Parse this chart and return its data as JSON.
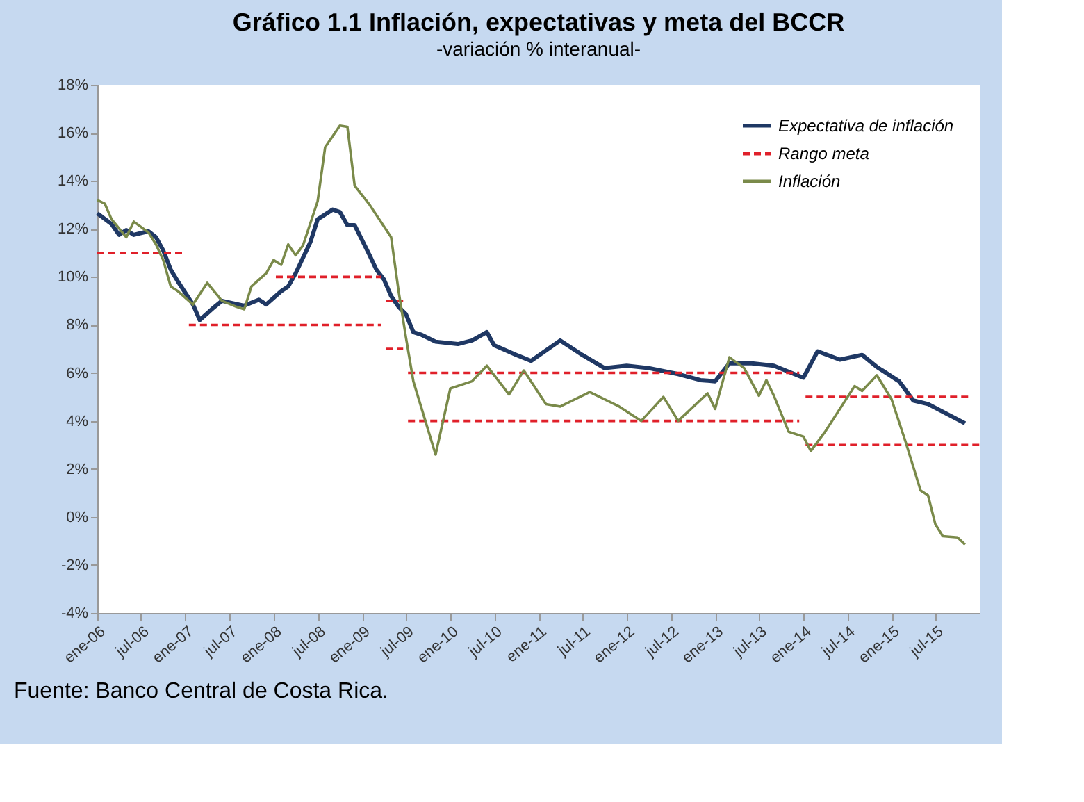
{
  "chart_data": {
    "type": "line",
    "title": "Gráfico 1.1 Inflación, expectativas y meta del BCCR",
    "subtitle": "-variación % interanual-",
    "annotations": [
      "Fuente: Banco Central de Costa Rica."
    ],
    "series": [
      {
        "name": "Expectativa de inflación",
        "color": "#1f3864",
        "line_style": "solid",
        "x": [
          "2006-01",
          "2006-03",
          "2006-04",
          "2006-05",
          "2006-06",
          "2006-08",
          "2006-09",
          "2006-10",
          "2006-11",
          "2006-12",
          "2007-02",
          "2007-03",
          "2007-05",
          "2007-06",
          "2007-09",
          "2007-11",
          "2007-12",
          "2008-02",
          "2008-03",
          "2008-04",
          "2008-06",
          "2008-07",
          "2008-09",
          "2008-10",
          "2008-11",
          "2008-12",
          "2009-02",
          "2009-03",
          "2009-04",
          "2009-05",
          "2009-06",
          "2009-07",
          "2009-08",
          "2009-09",
          "2009-11",
          "2010-02",
          "2010-04",
          "2010-06",
          "2010-07",
          "2010-10",
          "2010-12",
          "2011-04",
          "2011-07",
          "2011-10",
          "2012-01",
          "2012-04",
          "2012-08",
          "2012-11",
          "2013-01",
          "2013-03",
          "2013-06",
          "2013-09",
          "2014-01",
          "2014-03",
          "2014-06",
          "2014-09",
          "2014-11",
          "2015-02",
          "2015-04",
          "2015-06",
          "2015-11"
        ],
        "values": [
          12.65,
          12.2,
          11.75,
          11.95,
          11.75,
          11.9,
          11.65,
          11.1,
          10.3,
          9.8,
          8.85,
          8.2,
          8.75,
          9.0,
          8.8,
          9.05,
          8.85,
          9.4,
          9.6,
          10.15,
          11.45,
          12.4,
          12.8,
          12.7,
          12.15,
          12.15,
          10.9,
          10.3,
          9.9,
          9.2,
          8.75,
          8.45,
          7.7,
          7.6,
          7.3,
          7.2,
          7.35,
          7.7,
          7.15,
          6.75,
          6.5,
          7.35,
          6.75,
          6.2,
          6.3,
          6.2,
          5.95,
          5.7,
          5.65,
          6.4,
          6.4,
          6.3,
          5.8,
          6.9,
          6.55,
          6.75,
          6.25,
          5.65,
          4.85,
          4.7,
          3.9
        ]
      },
      {
        "name": "Rango meta",
        "color": "#e0202a",
        "line_style": "dashed",
        "x": [
          "2006-01-01",
          "2006-12-28",
          "2007-06-01",
          "2008-01-10",
          "2009-03-20",
          "2009-03-28",
          "2009-04-10",
          "2009-06-20",
          "2009-06-28",
          "2009-07-10",
          "2013-12-15",
          "2013-12-28",
          "2014-01-10",
          "2015-11-15"
        ],
        "values": [
          11,
          11,
          null,
          10,
          10,
          null,
          9,
          9,
          null,
          6,
          6,
          null,
          5,
          5
        ]
      },
      {
        "color": "#e0202a",
        "line_style": "dashed",
        "x": [
          "2007-01-15",
          "2009-03-20",
          "2009-03-28",
          "2009-04-10",
          "2009-06-20",
          "2009-06-28",
          "2009-07-10",
          "2013-12-15",
          "2013-12-28",
          "2014-01-10",
          "2016-01-01"
        ],
        "values": [
          8,
          8,
          null,
          7,
          7,
          null,
          4,
          4,
          null,
          3,
          3
        ]
      },
      {
        "name": "Inflación",
        "color": "#7a8a4a",
        "line_style": "solid",
        "x": [
          "2006-01",
          "2006-02",
          "2006-03",
          "2006-05",
          "2006-06",
          "2006-08",
          "2006-09",
          "2006-10",
          "2006-11",
          "2006-12",
          "2007-02",
          "2007-04",
          "2007-06",
          "2007-08",
          "2007-09",
          "2007-10",
          "2007-12",
          "2008-01",
          "2008-02",
          "2008-03",
          "2008-04",
          "2008-05",
          "2008-07",
          "2008-08",
          "2008-10",
          "2008-11",
          "2008-12",
          "2009-02",
          "2009-05",
          "2009-06",
          "2009-07",
          "2009-08",
          "2009-11",
          "2010-01",
          "2010-04",
          "2010-06",
          "2010-09",
          "2010-11",
          "2011-02",
          "2011-04",
          "2011-08",
          "2011-12",
          "2012-03",
          "2012-06",
          "2012-08",
          "2012-12",
          "2013-01",
          "2013-03",
          "2013-05",
          "2013-07",
          "2013-08",
          "2013-09",
          "2013-11",
          "2014-01",
          "2014-02",
          "2014-04",
          "2014-08",
          "2014-09",
          "2014-11",
          "2015-01",
          "2015-03",
          "2015-05",
          "2015-06",
          "2015-07",
          "2015-08",
          "2015-10",
          "2015-11"
        ],
        "values": [
          13.2,
          13.05,
          12.4,
          11.65,
          12.3,
          11.85,
          11.35,
          10.7,
          9.6,
          9.4,
          8.85,
          9.75,
          9.0,
          8.75,
          8.65,
          9.6,
          10.15,
          10.7,
          10.5,
          11.35,
          10.9,
          11.3,
          13.15,
          15.4,
          16.3,
          16.25,
          13.8,
          13.0,
          11.65,
          9.4,
          7.5,
          5.65,
          2.6,
          5.35,
          5.65,
          6.3,
          5.1,
          6.1,
          4.7,
          4.6,
          5.2,
          4.6,
          4.0,
          5.0,
          4.0,
          5.15,
          4.5,
          6.65,
          6.2,
          5.05,
          5.7,
          5.05,
          3.55,
          3.35,
          2.75,
          3.55,
          5.45,
          5.25,
          5.9,
          4.9,
          3.1,
          1.1,
          0.9,
          -0.3,
          -0.8,
          -0.85,
          -1.15
        ]
      }
    ],
    "xlim": [
      "2006-01",
      "2016-01"
    ],
    "xticks": [
      {
        "value": "2006-01",
        "label": "ene-06"
      },
      {
        "value": "2006-07",
        "label": "jul-06"
      },
      {
        "value": "2007-01",
        "label": "ene-07"
      },
      {
        "value": "2007-07",
        "label": "jul-07"
      },
      {
        "value": "2008-01",
        "label": "ene-08"
      },
      {
        "value": "2008-07",
        "label": "jul-08"
      },
      {
        "value": "2009-01",
        "label": "ene-09"
      },
      {
        "value": "2009-07",
        "label": "jul-09"
      },
      {
        "value": "2010-01",
        "label": "ene-10"
      },
      {
        "value": "2010-07",
        "label": "jul-10"
      },
      {
        "value": "2011-01",
        "label": "ene-11"
      },
      {
        "value": "2011-07",
        "label": "jul-11"
      },
      {
        "value": "2012-01",
        "label": "ene-12"
      },
      {
        "value": "2012-07",
        "label": "jul-12"
      },
      {
        "value": "2013-01",
        "label": "ene-13"
      },
      {
        "value": "2013-07",
        "label": "jul-13"
      },
      {
        "value": "2014-01",
        "label": "ene-14"
      },
      {
        "value": "2014-07",
        "label": "jul-14"
      },
      {
        "value": "2015-01",
        "label": "ene-15"
      },
      {
        "value": "2015-07",
        "label": "jul-15"
      }
    ],
    "ylim": [
      -4,
      18
    ],
    "yticks": [
      {
        "value": -4,
        "label": "-4%"
      },
      {
        "value": -2,
        "label": "-2%"
      },
      {
        "value": 0,
        "label": "0%"
      },
      {
        "value": 2,
        "label": "2%"
      },
      {
        "value": 4,
        "label": "4%"
      },
      {
        "value": 6,
        "label": "6%"
      },
      {
        "value": 8,
        "label": "8%"
      },
      {
        "value": 10,
        "label": "10%"
      },
      {
        "value": 12,
        "label": "12%"
      },
      {
        "value": 14,
        "label": "14%"
      },
      {
        "value": 16,
        "label": "16%"
      },
      {
        "value": 18,
        "label": "18%"
      }
    ],
    "grid": false,
    "legend": "top right",
    "marker": "none"
  }
}
